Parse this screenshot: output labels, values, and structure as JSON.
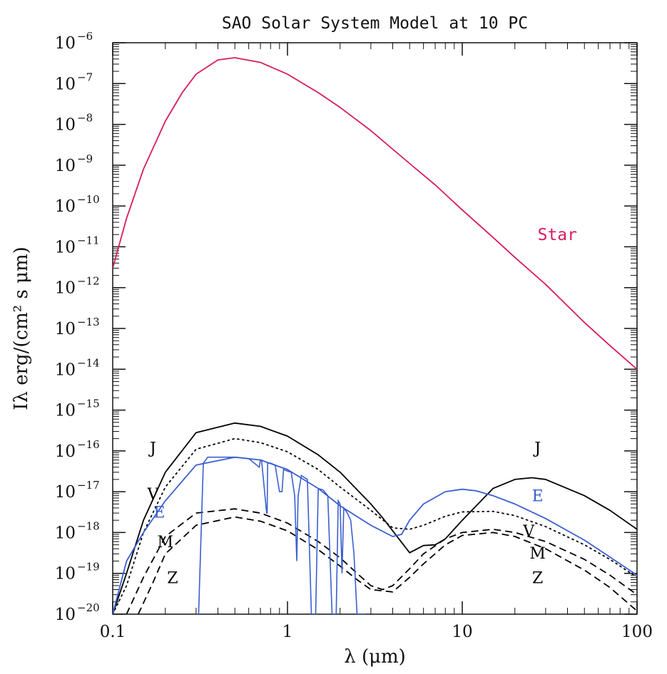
{
  "chart_data": {
    "type": "line",
    "title": "SAO Solar System Model at 10 PC",
    "xlabel": "λ (μm)",
    "ylabel": "Iλ erg/(cm² s μm)",
    "x_scale": "log",
    "y_scale": "log",
    "xlim": [
      0.1,
      100
    ],
    "ylim": [
      1e-20,
      1e-06
    ],
    "x_ticks": [
      {
        "value": 0.1,
        "label": "0.1"
      },
      {
        "value": 1,
        "label": "1"
      },
      {
        "value": 10,
        "label": "10"
      },
      {
        "value": 100,
        "label": "100"
      }
    ],
    "y_ticks": [
      {
        "value": 1e-06,
        "base": "10",
        "exp": "−6"
      },
      {
        "value": 1e-07,
        "base": "10",
        "exp": "−7"
      },
      {
        "value": 1e-08,
        "base": "10",
        "exp": "−8"
      },
      {
        "value": 1e-09,
        "base": "10",
        "exp": "−9"
      },
      {
        "value": 1e-10,
        "base": "10",
        "exp": "−10"
      },
      {
        "value": 1e-11,
        "base": "10",
        "exp": "−11"
      },
      {
        "value": 1e-12,
        "base": "10",
        "exp": "−12"
      },
      {
        "value": 1e-13,
        "base": "10",
        "exp": "−13"
      },
      {
        "value": 1e-14,
        "base": "10",
        "exp": "−14"
      },
      {
        "value": 1e-15,
        "base": "10",
        "exp": "−15"
      },
      {
        "value": 1e-16,
        "base": "10",
        "exp": "−16"
      },
      {
        "value": 1e-17,
        "base": "10",
        "exp": "−17"
      },
      {
        "value": 1e-18,
        "base": "10",
        "exp": "−18"
      },
      {
        "value": 1e-19,
        "base": "10",
        "exp": "−19"
      },
      {
        "value": 1e-20,
        "base": "10",
        "exp": "−20"
      }
    ],
    "grid": false,
    "legend": "none",
    "series": [
      {
        "name": "Star",
        "color": "#d81b60",
        "style": "solid",
        "x": [
          0.1,
          0.12,
          0.15,
          0.2,
          0.25,
          0.3,
          0.4,
          0.5,
          0.7,
          1,
          1.5,
          2,
          3,
          5,
          7,
          10,
          15,
          20,
          30,
          50,
          70,
          100
        ],
        "y": [
          3e-12,
          5e-11,
          8e-10,
          1.2e-08,
          6e-08,
          1.7e-07,
          3.8e-07,
          4.3e-07,
          3.3e-07,
          1.7e-07,
          6e-08,
          2.6e-08,
          7e-09,
          1.1e-09,
          3.3e-10,
          8e-11,
          1.7e-11,
          5.5e-12,
          1.2e-12,
          1.4e-13,
          3.8e-14,
          1e-14
        ]
      },
      {
        "name": "J",
        "color": "#000000",
        "style": "solid",
        "x": [
          0.1,
          0.12,
          0.15,
          0.2,
          0.3,
          0.5,
          0.7,
          1,
          1.5,
          2,
          3,
          3.5,
          4,
          5,
          6,
          7,
          8,
          10,
          15,
          20,
          25,
          30,
          50,
          70,
          100
        ],
        "y": [
          1e-20,
          1e-19,
          2e-18,
          3e-17,
          2.8e-16,
          4.8e-16,
          4e-16,
          2.3e-16,
          8e-17,
          3e-17,
          5e-18,
          2.3e-18,
          1.1e-18,
          3.2e-19,
          4.8e-19,
          5e-19,
          7e-19,
          2e-18,
          1.2e-17,
          2e-17,
          2.2e-17,
          2e-17,
          8e-18,
          3.5e-18,
          1.2e-18
        ]
      },
      {
        "name": "V",
        "color": "#000000",
        "style": "dotted",
        "x": [
          0.1,
          0.12,
          0.15,
          0.2,
          0.3,
          0.5,
          0.7,
          1,
          1.5,
          2,
          3,
          4,
          5,
          6,
          8,
          10,
          15,
          20,
          30,
          50,
          70,
          100
        ],
        "y": [
          1e-20,
          5e-20,
          1e-18,
          1.3e-17,
          1.1e-16,
          2e-16,
          1.6e-16,
          9.5e-17,
          3.5e-17,
          1.3e-17,
          3.5e-18,
          1.3e-18,
          1.2e-18,
          1.5e-18,
          2.5e-18,
          3.2e-18,
          3.3e-18,
          2.6e-18,
          1.4e-18,
          5e-19,
          2.2e-19,
          8e-20
        ]
      },
      {
        "name": "E",
        "color": "#3a5fd0",
        "style": "solid",
        "x": [
          0.1,
          0.12,
          0.15,
          0.2,
          0.3,
          0.5,
          0.7,
          1,
          1.5,
          2,
          3,
          4,
          4.5,
          5,
          6,
          8,
          10,
          12,
          15,
          20,
          30,
          50,
          70,
          100
        ],
        "y": [
          1e-20,
          2e-19,
          1e-18,
          6e-18,
          4.5e-17,
          7e-17,
          6e-17,
          3.5e-17,
          1.2e-17,
          4.5e-18,
          1.5e-18,
          8e-19,
          9e-19,
          2e-18,
          5e-18,
          1e-17,
          1.15e-17,
          1.05e-17,
          8e-18,
          5e-18,
          2.2e-18,
          6.5e-19,
          2.5e-19,
          9e-20
        ]
      },
      {
        "name": "M",
        "color": "#000000",
        "style": "dashed",
        "x": [
          0.12,
          0.15,
          0.2,
          0.3,
          0.5,
          0.7,
          1,
          1.5,
          2,
          2.5,
          3,
          3.5,
          4,
          5,
          6,
          8,
          10,
          15,
          20,
          30,
          50,
          70,
          100
        ],
        "y": [
          1e-20,
          8e-20,
          8e-19,
          3e-18,
          3.8e-18,
          3e-18,
          1.7e-18,
          6e-19,
          2.4e-19,
          1e-19,
          5e-20,
          4e-20,
          5e-20,
          1.3e-19,
          3e-19,
          7e-19,
          1e-18,
          1.2e-18,
          1e-18,
          6e-19,
          2.2e-19,
          9e-20,
          3e-20
        ]
      },
      {
        "name": "Z",
        "color": "#000000",
        "style": "dashed",
        "x": [
          0.14,
          0.17,
          0.2,
          0.3,
          0.5,
          0.7,
          1,
          1.5,
          2,
          2.5,
          3,
          4,
          5,
          6,
          8,
          10,
          15,
          20,
          30,
          50,
          70,
          100
        ],
        "y": [
          1e-20,
          6e-20,
          3e-19,
          1.5e-18,
          2.4e-18,
          1.9e-18,
          1.1e-18,
          3.8e-19,
          1.5e-19,
          7e-20,
          4e-20,
          3.5e-20,
          8e-20,
          1.7e-19,
          5e-19,
          8.5e-19,
          1e-18,
          8e-19,
          4e-19,
          1.2e-19,
          4.5e-20,
          1.2e-20
        ]
      }
    ],
    "earth_absorption": {
      "x": [
        0.3,
        0.31,
        0.33,
        0.35,
        0.4,
        0.5,
        0.6,
        0.69,
        0.7,
        0.71,
        0.76,
        0.765,
        0.77,
        0.8,
        0.85,
        0.9,
        0.93,
        0.95,
        1.0,
        1.05,
        1.1,
        1.13,
        1.15,
        1.2,
        1.3,
        1.37,
        1.4,
        1.42,
        1.45,
        1.5,
        1.6,
        1.7,
        1.8,
        1.85,
        1.87,
        1.9,
        1.95,
        2.0,
        2.05,
        2.1,
        2.2,
        2.3,
        2.4,
        2.5,
        2.6,
        2.7,
        2.8
      ],
      "y": [
        1e-20,
        1e-20,
        5e-17,
        7e-17,
        7e-17,
        7e-17,
        6.5e-17,
        4e-17,
        6e-17,
        6e-17,
        3e-18,
        3e-18,
        5e-17,
        5e-17,
        4.5e-17,
        1e-17,
        1e-17,
        3.5e-17,
        3.2e-17,
        3e-17,
        8e-18,
        2e-19,
        8e-18,
        2.5e-17,
        2e-17,
        1e-20,
        1e-20,
        1e-20,
        1e-20,
        1.2e-17,
        1.1e-17,
        8e-18,
        1e-20,
        1e-20,
        1e-20,
        1e-20,
        6e-18,
        5e-18,
        1e-19,
        4e-18,
        3e-18,
        2e-18,
        3e-19,
        1e-20,
        1e-20,
        1e-20,
        1e-20
      ]
    },
    "annotations": [
      {
        "text": "Star",
        "x": 35,
        "y": 2e-11,
        "color": "#d81b60"
      },
      {
        "text": "J",
        "x": 0.17,
        "y": 1.2e-16,
        "color": "#000000"
      },
      {
        "text": "V",
        "x": 0.17,
        "y": 9e-18,
        "color": "#000000"
      },
      {
        "text": "E",
        "x": 0.185,
        "y": 3.2e-18,
        "color": "#3a5fd0"
      },
      {
        "text": "M",
        "x": 0.2,
        "y": 6e-19,
        "color": "#000000"
      },
      {
        "text": "Z",
        "x": 0.22,
        "y": 8e-20,
        "color": "#000000"
      },
      {
        "text": "J",
        "x": 27,
        "y": 1.2e-16,
        "color": "#000000"
      },
      {
        "text": "E",
        "x": 27,
        "y": 8e-18,
        "color": "#3a5fd0"
      },
      {
        "text": "V",
        "x": 24,
        "y": 1.1e-18,
        "color": "#000000"
      },
      {
        "text": "M",
        "x": 27,
        "y": 3.2e-19,
        "color": "#000000"
      },
      {
        "text": "Z",
        "x": 27,
        "y": 8e-20,
        "color": "#000000"
      }
    ]
  }
}
